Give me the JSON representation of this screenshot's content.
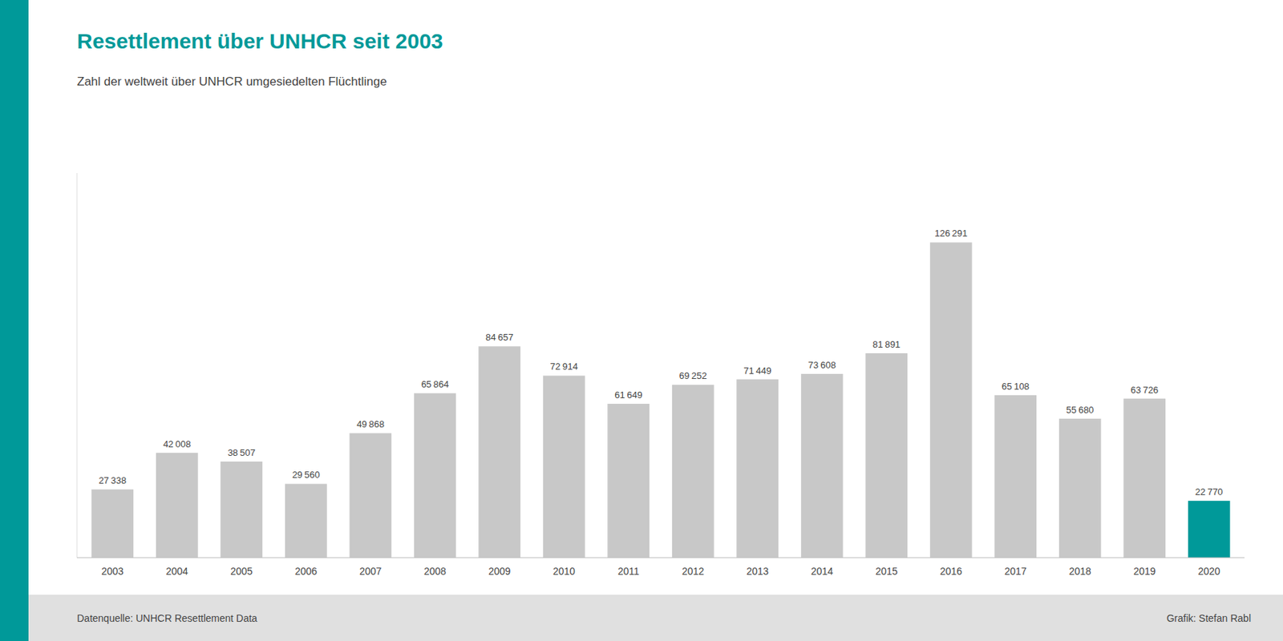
{
  "chart_data": {
    "type": "bar",
    "title": "Resettlement über UNHCR seit 2003",
    "subtitle": "Zahl der weltweit über UNHCR umgesiedelten Flüchtlinge",
    "categories": [
      "2003",
      "2004",
      "2005",
      "2006",
      "2007",
      "2008",
      "2009",
      "2010",
      "2011",
      "2012",
      "2013",
      "2014",
      "2015",
      "2016",
      "2017",
      "2018",
      "2019",
      "2020"
    ],
    "values": [
      27338,
      42008,
      38507,
      29560,
      49868,
      65864,
      84657,
      72914,
      61649,
      69252,
      71449,
      73608,
      81891,
      126291,
      65108,
      55680,
      63726,
      22770
    ],
    "value_labels": [
      "27 338",
      "42 008",
      "38 507",
      "29 560",
      "49 868",
      "65 864",
      "84 657",
      "72 914",
      "61 649",
      "69 252",
      "71 449",
      "73 608",
      "81 891",
      "126 291",
      "65 108",
      "55 680",
      "63 726",
      "22 770"
    ],
    "colors": [
      "#c8c8c8",
      "#c8c8c8",
      "#c8c8c8",
      "#c8c8c8",
      "#c8c8c8",
      "#c8c8c8",
      "#c8c8c8",
      "#c8c8c8",
      "#c8c8c8",
      "#c8c8c8",
      "#c8c8c8",
      "#c8c8c8",
      "#c8c8c8",
      "#c8c8c8",
      "#c8c8c8",
      "#c8c8c8",
      "#c8c8c8",
      "#009999"
    ],
    "ylim": [
      0,
      154075.02
    ],
    "data_labels": true,
    "tick_labels": "x",
    "grid": false,
    "annotations": [
      "Datenquelle: UNHCR Resettlement Data",
      "Grafik: Stefan Rabl"
    ]
  }
}
